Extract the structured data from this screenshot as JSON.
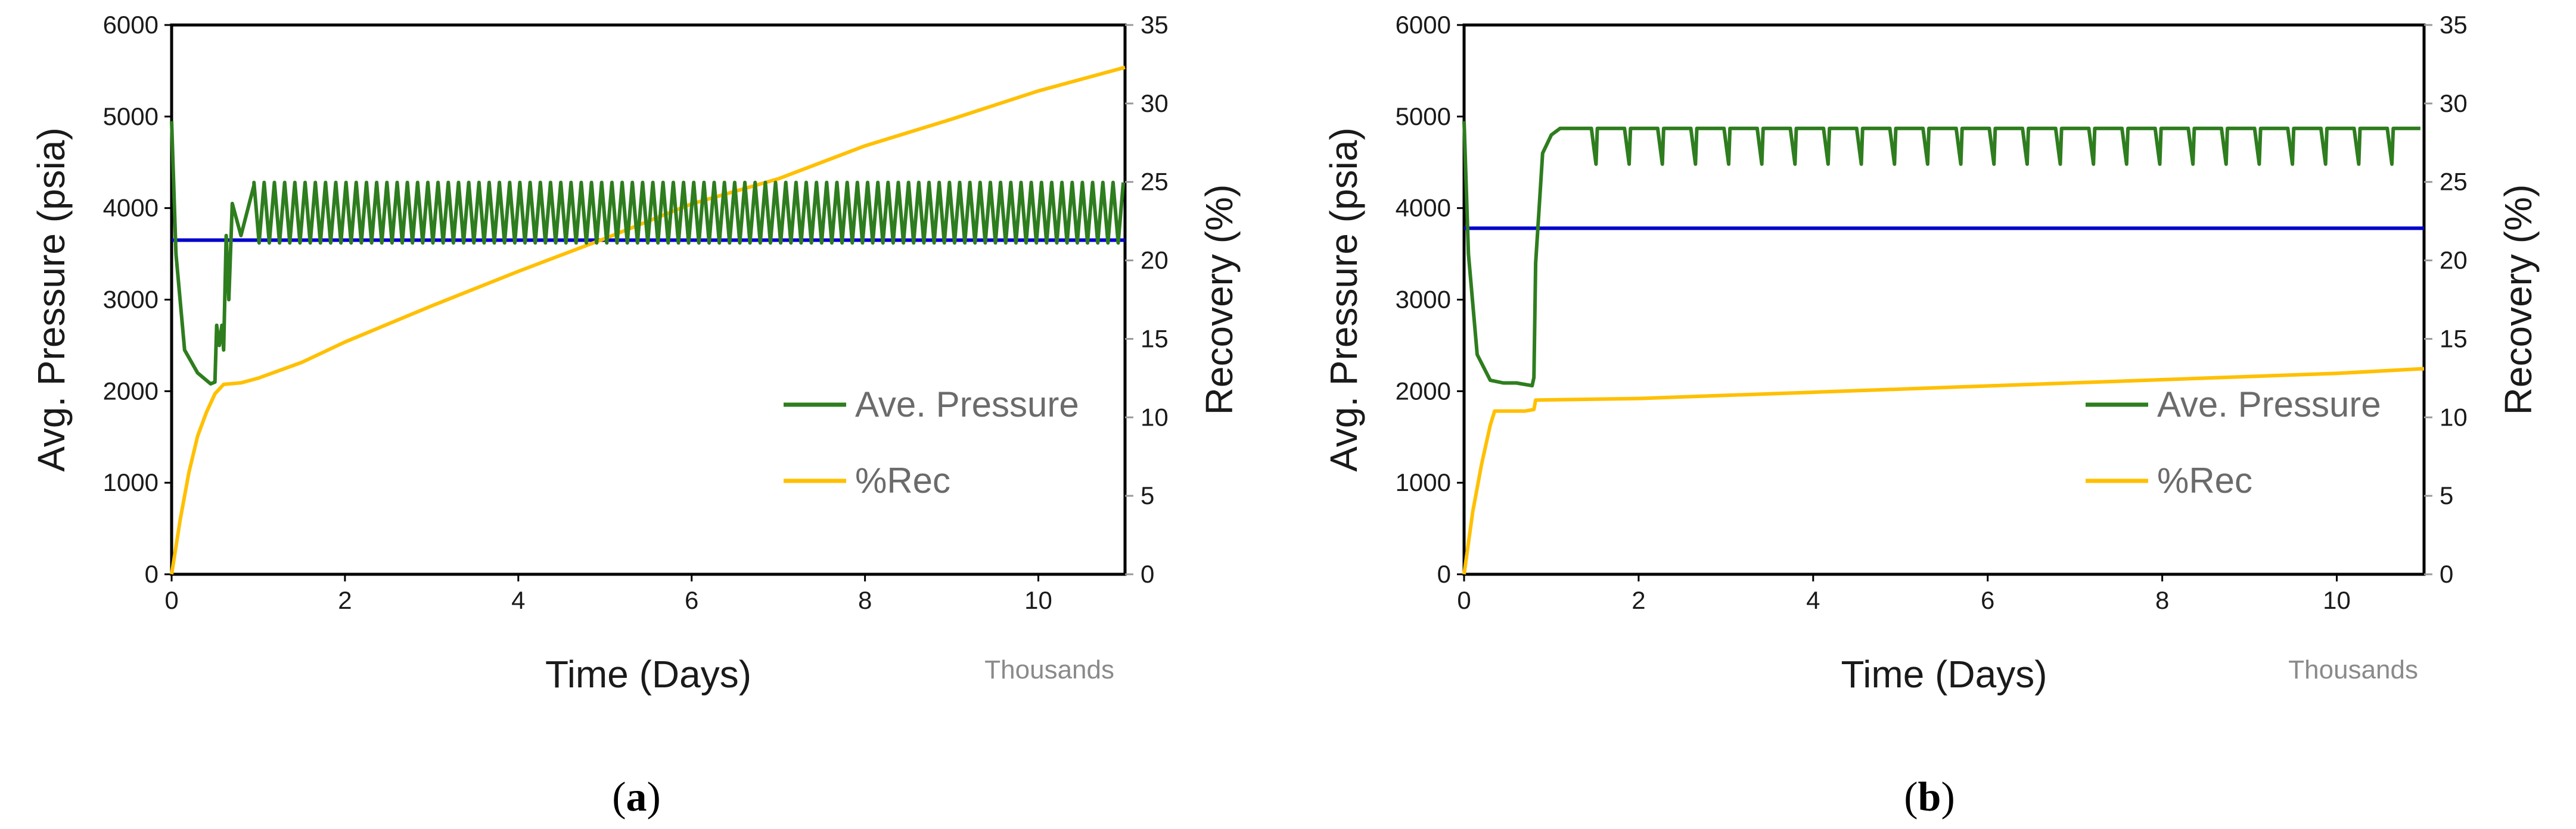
{
  "colors": {
    "pressure": "#2e7d1e",
    "recovery": "#ffc000",
    "reference": "#0000cc",
    "frame": "#000000"
  },
  "chart_data": [
    {
      "type": "line",
      "panel_label": "a",
      "xlabel": "Time (Days)",
      "x_units": "Thousands",
      "ylabel": "Avg. Pressure (psia)",
      "y2label": "Recovery (%)",
      "xlim": [
        0,
        11
      ],
      "ylim": [
        0,
        6000
      ],
      "y2lim": [
        0,
        35
      ],
      "x_ticks": [
        "0",
        "2",
        "4",
        "6",
        "8",
        "10"
      ],
      "y_ticks": [
        "0",
        "1000",
        "2000",
        "3000",
        "4000",
        "5000",
        "6000"
      ],
      "y2_ticks": [
        "0",
        "5",
        "10",
        "15",
        "20",
        "25",
        "30",
        "35"
      ],
      "legend": [
        "Ave. Pressure",
        "%Rec"
      ],
      "reference_pressure": 3650,
      "series": [
        {
          "name": "Ave. Pressure",
          "axis": "left",
          "x": [
            0,
            0.05,
            0.15,
            0.3,
            0.45,
            0.5,
            0.52,
            0.55,
            0.58,
            0.6,
            0.63,
            0.66,
            0.7,
            0.8,
            0.95
          ],
          "y": [
            4950,
            3500,
            2450,
            2200,
            2080,
            2100,
            2720,
            2500,
            2720,
            2450,
            3700,
            3000,
            4050,
            3700,
            4250
          ],
          "oscillation": {
            "start": 0.95,
            "end": 11,
            "period": 0.118,
            "min": 3620,
            "max": 4280
          }
        },
        {
          "name": "%Rec",
          "axis": "right",
          "x": [
            0,
            0.1,
            0.2,
            0.3,
            0.4,
            0.5,
            0.6,
            0.8,
            1.0,
            1.5,
            2,
            3,
            4,
            5,
            6,
            7,
            8,
            9,
            10,
            11
          ],
          "y": [
            0,
            3.5,
            6.5,
            8.8,
            10.3,
            11.5,
            12.1,
            12.2,
            12.5,
            13.5,
            14.8,
            17.1,
            19.3,
            21.4,
            23.6,
            25.2,
            27.3,
            29.0,
            30.8,
            32.3
          ]
        }
      ]
    },
    {
      "type": "line",
      "panel_label": "b",
      "xlabel": "Time (Days)",
      "x_units": "Thousands",
      "ylabel": "Avg. Pressure (psia)",
      "y2label": "Recovery (%)",
      "xlim": [
        0,
        11
      ],
      "ylim": [
        0,
        6000
      ],
      "y2lim": [
        0,
        35
      ],
      "x_ticks": [
        "0",
        "2",
        "4",
        "6",
        "8",
        "10"
      ],
      "y_ticks": [
        "0",
        "1000",
        "2000",
        "3000",
        "4000",
        "5000",
        "6000"
      ],
      "y2_ticks": [
        "0",
        "5",
        "10",
        "15",
        "20",
        "25",
        "30",
        "35"
      ],
      "legend": [
        "Ave. Pressure",
        "%Rec"
      ],
      "reference_pressure": 3780,
      "series": [
        {
          "name": "Ave. Pressure",
          "axis": "left",
          "x": [
            0,
            0.05,
            0.15,
            0.3,
            0.45,
            0.6,
            0.78,
            0.8,
            0.82,
            0.9,
            1.0,
            1.1,
            1.15
          ],
          "y": [
            4950,
            3500,
            2400,
            2120,
            2090,
            2090,
            2060,
            2150,
            3400,
            4600,
            4800,
            4870,
            4870
          ],
          "dips": {
            "start": 1.2,
            "end": 11,
            "period": 0.38,
            "min": 4480,
            "max": 4870
          }
        },
        {
          "name": "%Rec",
          "axis": "right",
          "x": [
            0,
            0.1,
            0.2,
            0.3,
            0.35,
            0.4,
            0.7,
            0.8,
            0.82,
            2,
            4,
            6,
            8,
            10,
            11
          ],
          "y": [
            0,
            4.0,
            7.0,
            9.5,
            10.4,
            10.4,
            10.4,
            10.5,
            11.1,
            11.2,
            11.6,
            12.0,
            12.4,
            12.8,
            13.1
          ]
        }
      ]
    }
  ]
}
